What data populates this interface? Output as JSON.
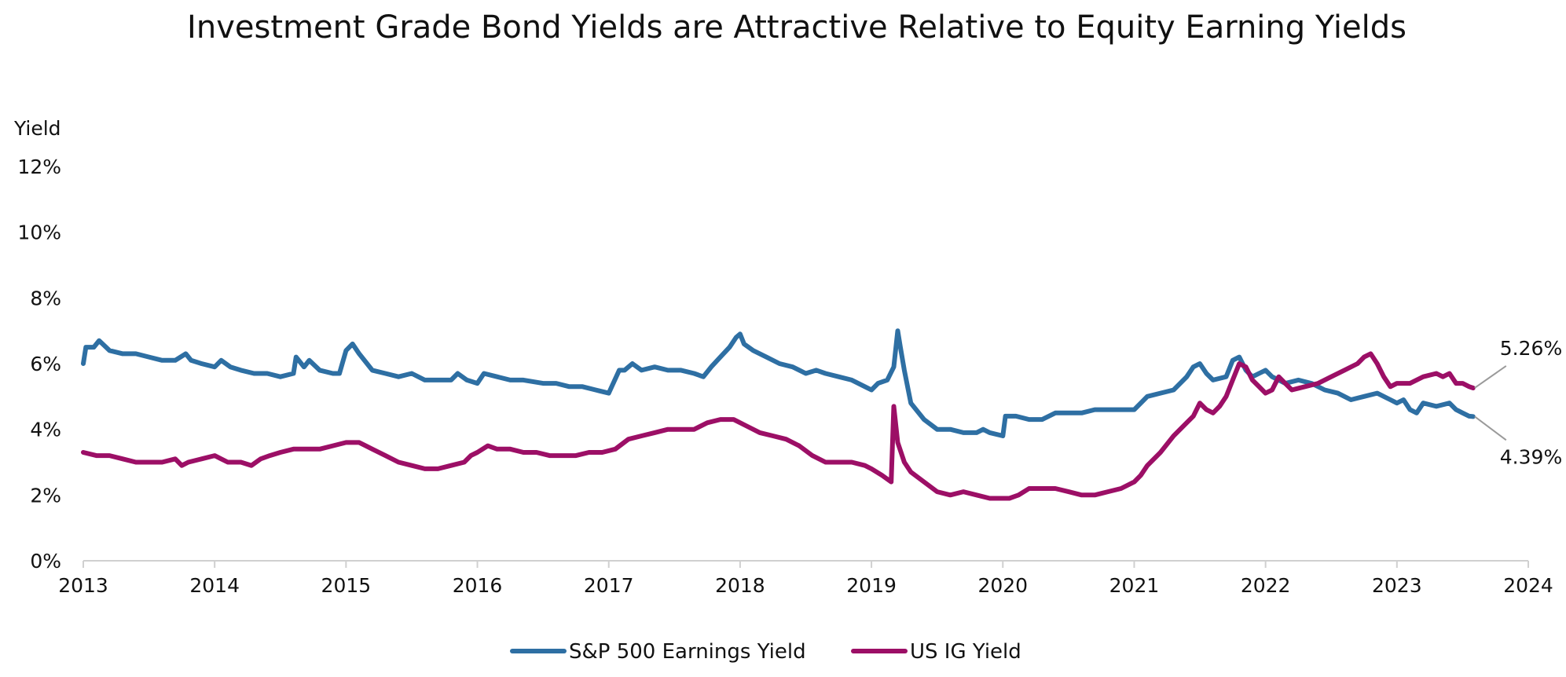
{
  "chart_data": {
    "type": "line",
    "title": "Investment Grade Bond Yields are Attractive Relative to Equity Earning Yields",
    "ylabel": "Yield",
    "xlabel": "",
    "xlim": [
      2013,
      2024
    ],
    "ylim": [
      0,
      12
    ],
    "x_ticks": [
      2013,
      2014,
      2015,
      2016,
      2017,
      2018,
      2019,
      2020,
      2021,
      2022,
      2023,
      2024
    ],
    "x_tick_labels": [
      "2013",
      "2014",
      "2015",
      "2016",
      "2017",
      "2018",
      "2019",
      "2020",
      "2021",
      "2022",
      "2023",
      "2024"
    ],
    "y_ticks": [
      0,
      2,
      4,
      6,
      8,
      10,
      12
    ],
    "y_tick_labels": [
      "0%",
      "2%",
      "4%",
      "6%",
      "8%",
      "10%",
      "12%"
    ],
    "grid": false,
    "legend_position": "bottom",
    "series": [
      {
        "name": "S&P 500 Earnings Yield",
        "color": "#2e6fa3",
        "points": [
          [
            2013.0,
            6.0
          ],
          [
            2013.02,
            6.5
          ],
          [
            2013.08,
            6.5
          ],
          [
            2013.12,
            6.7
          ],
          [
            2013.2,
            6.4
          ],
          [
            2013.3,
            6.3
          ],
          [
            2013.4,
            6.3
          ],
          [
            2013.5,
            6.2
          ],
          [
            2013.6,
            6.1
          ],
          [
            2013.7,
            6.1
          ],
          [
            2013.78,
            6.3
          ],
          [
            2013.82,
            6.1
          ],
          [
            2013.9,
            6.0
          ],
          [
            2014.0,
            5.9
          ],
          [
            2014.05,
            6.1
          ],
          [
            2014.12,
            5.9
          ],
          [
            2014.2,
            5.8
          ],
          [
            2014.3,
            5.7
          ],
          [
            2014.4,
            5.7
          ],
          [
            2014.5,
            5.6
          ],
          [
            2014.6,
            5.7
          ],
          [
            2014.62,
            6.2
          ],
          [
            2014.68,
            5.9
          ],
          [
            2014.72,
            6.1
          ],
          [
            2014.8,
            5.8
          ],
          [
            2014.9,
            5.7
          ],
          [
            2014.95,
            5.7
          ],
          [
            2015.0,
            6.4
          ],
          [
            2015.05,
            6.6
          ],
          [
            2015.1,
            6.3
          ],
          [
            2015.2,
            5.8
          ],
          [
            2015.3,
            5.7
          ],
          [
            2015.4,
            5.6
          ],
          [
            2015.5,
            5.7
          ],
          [
            2015.6,
            5.5
          ],
          [
            2015.7,
            5.5
          ],
          [
            2015.8,
            5.5
          ],
          [
            2015.85,
            5.7
          ],
          [
            2015.92,
            5.5
          ],
          [
            2016.0,
            5.4
          ],
          [
            2016.05,
            5.7
          ],
          [
            2016.15,
            5.6
          ],
          [
            2016.25,
            5.5
          ],
          [
            2016.35,
            5.5
          ],
          [
            2016.5,
            5.4
          ],
          [
            2016.6,
            5.4
          ],
          [
            2016.7,
            5.3
          ],
          [
            2016.8,
            5.3
          ],
          [
            2016.9,
            5.2
          ],
          [
            2017.0,
            5.1
          ],
          [
            2017.08,
            5.8
          ],
          [
            2017.12,
            5.8
          ],
          [
            2017.18,
            6.0
          ],
          [
            2017.25,
            5.8
          ],
          [
            2017.35,
            5.9
          ],
          [
            2017.45,
            5.8
          ],
          [
            2017.55,
            5.8
          ],
          [
            2017.65,
            5.7
          ],
          [
            2017.72,
            5.6
          ],
          [
            2017.78,
            5.9
          ],
          [
            2017.85,
            6.2
          ],
          [
            2017.92,
            6.5
          ],
          [
            2017.97,
            6.8
          ],
          [
            2018.0,
            6.9
          ],
          [
            2018.03,
            6.6
          ],
          [
            2018.1,
            6.4
          ],
          [
            2018.2,
            6.2
          ],
          [
            2018.3,
            6.0
          ],
          [
            2018.4,
            5.9
          ],
          [
            2018.5,
            5.7
          ],
          [
            2018.58,
            5.8
          ],
          [
            2018.65,
            5.7
          ],
          [
            2018.75,
            5.6
          ],
          [
            2018.85,
            5.5
          ],
          [
            2018.95,
            5.3
          ],
          [
            2019.0,
            5.2
          ],
          [
            2019.05,
            5.4
          ],
          [
            2019.12,
            5.5
          ],
          [
            2019.17,
            5.9
          ],
          [
            2019.2,
            7.0
          ],
          [
            2019.22,
            6.5
          ],
          [
            2019.25,
            5.8
          ],
          [
            2019.3,
            4.8
          ],
          [
            2019.4,
            4.3
          ],
          [
            2019.5,
            4.0
          ],
          [
            2019.6,
            4.0
          ],
          [
            2019.7,
            3.9
          ],
          [
            2019.8,
            3.9
          ],
          [
            2019.85,
            4.0
          ],
          [
            2019.9,
            3.9
          ],
          [
            2020.0,
            3.8
          ],
          [
            2020.02,
            4.4
          ],
          [
            2020.1,
            4.4
          ],
          [
            2020.2,
            4.3
          ],
          [
            2020.3,
            4.3
          ],
          [
            2020.4,
            4.5
          ],
          [
            2020.5,
            4.5
          ],
          [
            2020.6,
            4.5
          ],
          [
            2020.7,
            4.6
          ],
          [
            2020.8,
            4.6
          ],
          [
            2020.9,
            4.6
          ],
          [
            2021.0,
            4.6
          ],
          [
            2021.1,
            5.0
          ],
          [
            2021.2,
            5.1
          ],
          [
            2021.3,
            5.2
          ],
          [
            2021.4,
            5.6
          ],
          [
            2021.45,
            5.9
          ],
          [
            2021.5,
            6.0
          ],
          [
            2021.55,
            5.7
          ],
          [
            2021.6,
            5.5
          ],
          [
            2021.7,
            5.6
          ],
          [
            2021.75,
            6.1
          ],
          [
            2021.8,
            6.2
          ],
          [
            2021.85,
            5.8
          ],
          [
            2021.9,
            5.6
          ],
          [
            2021.95,
            5.7
          ],
          [
            2022.0,
            5.8
          ],
          [
            2022.05,
            5.6
          ],
          [
            2022.15,
            5.4
          ],
          [
            2022.25,
            5.5
          ],
          [
            2022.35,
            5.4
          ],
          [
            2022.45,
            5.2
          ],
          [
            2022.55,
            5.1
          ],
          [
            2022.65,
            4.9
          ],
          [
            2022.75,
            5.0
          ],
          [
            2022.85,
            5.1
          ],
          [
            2022.95,
            4.9
          ],
          [
            2023.0,
            4.8
          ],
          [
            2023.05,
            4.9
          ],
          [
            2023.1,
            4.6
          ],
          [
            2023.15,
            4.5
          ],
          [
            2023.2,
            4.8
          ],
          [
            2023.3,
            4.7
          ],
          [
            2023.4,
            4.8
          ],
          [
            2023.45,
            4.6
          ],
          [
            2023.5,
            4.5
          ],
          [
            2023.55,
            4.4
          ],
          [
            2023.58,
            4.39
          ]
        ]
      },
      {
        "name": "US IG Yield",
        "color": "#9c0f66",
        "points": [
          [
            2013.0,
            3.3
          ],
          [
            2013.1,
            3.2
          ],
          [
            2013.2,
            3.2
          ],
          [
            2013.3,
            3.1
          ],
          [
            2013.4,
            3.0
          ],
          [
            2013.5,
            3.0
          ],
          [
            2013.6,
            3.0
          ],
          [
            2013.7,
            3.1
          ],
          [
            2013.75,
            2.9
          ],
          [
            2013.8,
            3.0
          ],
          [
            2013.9,
            3.1
          ],
          [
            2014.0,
            3.2
          ],
          [
            2014.05,
            3.1
          ],
          [
            2014.1,
            3.0
          ],
          [
            2014.2,
            3.0
          ],
          [
            2014.28,
            2.9
          ],
          [
            2014.35,
            3.1
          ],
          [
            2014.42,
            3.2
          ],
          [
            2014.5,
            3.3
          ],
          [
            2014.6,
            3.4
          ],
          [
            2014.7,
            3.4
          ],
          [
            2014.8,
            3.4
          ],
          [
            2014.9,
            3.5
          ],
          [
            2015.0,
            3.6
          ],
          [
            2015.1,
            3.6
          ],
          [
            2015.15,
            3.5
          ],
          [
            2015.2,
            3.4
          ],
          [
            2015.3,
            3.2
          ],
          [
            2015.4,
            3.0
          ],
          [
            2015.5,
            2.9
          ],
          [
            2015.6,
            2.8
          ],
          [
            2015.7,
            2.8
          ],
          [
            2015.8,
            2.9
          ],
          [
            2015.9,
            3.0
          ],
          [
            2015.95,
            3.2
          ],
          [
            2016.0,
            3.3
          ],
          [
            2016.08,
            3.5
          ],
          [
            2016.15,
            3.4
          ],
          [
            2016.25,
            3.4
          ],
          [
            2016.35,
            3.3
          ],
          [
            2016.45,
            3.3
          ],
          [
            2016.55,
            3.2
          ],
          [
            2016.65,
            3.2
          ],
          [
            2016.75,
            3.2
          ],
          [
            2016.85,
            3.3
          ],
          [
            2016.95,
            3.3
          ],
          [
            2017.05,
            3.4
          ],
          [
            2017.15,
            3.7
          ],
          [
            2017.25,
            3.8
          ],
          [
            2017.35,
            3.9
          ],
          [
            2017.45,
            4.0
          ],
          [
            2017.55,
            4.0
          ],
          [
            2017.65,
            4.0
          ],
          [
            2017.75,
            4.2
          ],
          [
            2017.85,
            4.3
          ],
          [
            2017.95,
            4.3
          ],
          [
            2018.05,
            4.1
          ],
          [
            2018.15,
            3.9
          ],
          [
            2018.25,
            3.8
          ],
          [
            2018.35,
            3.7
          ],
          [
            2018.45,
            3.5
          ],
          [
            2018.55,
            3.2
          ],
          [
            2018.65,
            3.0
          ],
          [
            2018.75,
            3.0
          ],
          [
            2018.85,
            3.0
          ],
          [
            2018.95,
            2.9
          ],
          [
            2019.0,
            2.8
          ],
          [
            2019.08,
            2.6
          ],
          [
            2019.15,
            2.4
          ],
          [
            2019.17,
            4.7
          ],
          [
            2019.2,
            3.6
          ],
          [
            2019.25,
            3.0
          ],
          [
            2019.3,
            2.7
          ],
          [
            2019.4,
            2.4
          ],
          [
            2019.5,
            2.1
          ],
          [
            2019.6,
            2.0
          ],
          [
            2019.7,
            2.1
          ],
          [
            2019.8,
            2.0
          ],
          [
            2019.9,
            1.9
          ],
          [
            2020.0,
            1.9
          ],
          [
            2020.05,
            1.9
          ],
          [
            2020.12,
            2.0
          ],
          [
            2020.2,
            2.2
          ],
          [
            2020.3,
            2.2
          ],
          [
            2020.4,
            2.2
          ],
          [
            2020.5,
            2.1
          ],
          [
            2020.6,
            2.0
          ],
          [
            2020.7,
            2.0
          ],
          [
            2020.8,
            2.1
          ],
          [
            2020.9,
            2.2
          ],
          [
            2021.0,
            2.4
          ],
          [
            2021.05,
            2.6
          ],
          [
            2021.1,
            2.9
          ],
          [
            2021.2,
            3.3
          ],
          [
            2021.3,
            3.8
          ],
          [
            2021.4,
            4.2
          ],
          [
            2021.45,
            4.4
          ],
          [
            2021.5,
            4.8
          ],
          [
            2021.55,
            4.6
          ],
          [
            2021.6,
            4.5
          ],
          [
            2021.65,
            4.7
          ],
          [
            2021.7,
            5.0
          ],
          [
            2021.75,
            5.5
          ],
          [
            2021.8,
            6.0
          ],
          [
            2021.85,
            5.9
          ],
          [
            2021.9,
            5.5
          ],
          [
            2021.95,
            5.3
          ],
          [
            2022.0,
            5.1
          ],
          [
            2022.05,
            5.2
          ],
          [
            2022.1,
            5.6
          ],
          [
            2022.15,
            5.4
          ],
          [
            2022.2,
            5.2
          ],
          [
            2022.3,
            5.3
          ],
          [
            2022.4,
            5.4
          ],
          [
            2022.5,
            5.6
          ],
          [
            2022.6,
            5.8
          ],
          [
            2022.7,
            6.0
          ],
          [
            2022.75,
            6.2
          ],
          [
            2022.8,
            6.3
          ],
          [
            2022.85,
            6.0
          ],
          [
            2022.9,
            5.6
          ],
          [
            2022.95,
            5.3
          ],
          [
            2023.0,
            5.4
          ],
          [
            2023.1,
            5.4
          ],
          [
            2023.2,
            5.6
          ],
          [
            2023.3,
            5.7
          ],
          [
            2023.35,
            5.6
          ],
          [
            2023.4,
            5.7
          ],
          [
            2023.45,
            5.4
          ],
          [
            2023.5,
            5.4
          ],
          [
            2023.55,
            5.3
          ],
          [
            2023.58,
            5.26
          ]
        ]
      }
    ],
    "annotations": [
      {
        "text": "5.26%",
        "series": "US IG Yield",
        "x": 2023.58,
        "y": 5.26
      },
      {
        "text": "4.39%",
        "series": "S&P 500 Earnings Yield",
        "x": 2023.58,
        "y": 4.39
      }
    ]
  }
}
